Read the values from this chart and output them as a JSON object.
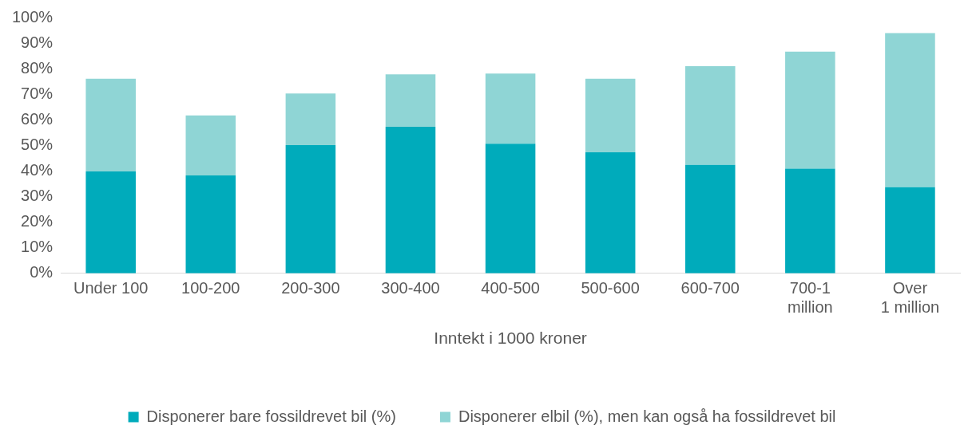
{
  "chart_data": {
    "type": "bar",
    "stacked": true,
    "xlabel": "Inntekt i 1000 kroner",
    "categories": [
      "Under 100",
      "100-200",
      "200-300",
      "300-400",
      "400-500",
      "500-600",
      "600-700",
      "700-1 million",
      "Over 1 million"
    ],
    "series": [
      {
        "name": "Disponerer bare fossildrevet bil (%)",
        "color": "#00abbb",
        "values": [
          39.8,
          38.3,
          50.1,
          57.3,
          50.7,
          47.3,
          42.4,
          40.9,
          33.7
        ]
      },
      {
        "name": "Disponerer elbil (%), men kan også ha fossildrevet bil",
        "color": "#8fd5d5",
        "values": [
          36.3,
          23.4,
          20.2,
          20.5,
          27.4,
          28.8,
          38.6,
          45.8,
          60.2
        ]
      }
    ],
    "ylim": [
      0,
      100
    ],
    "yticks": [
      {
        "value": 0,
        "label": "0%"
      },
      {
        "value": 10,
        "label": "10%"
      },
      {
        "value": 20,
        "label": "20%"
      },
      {
        "value": 30,
        "label": "30%"
      },
      {
        "value": 40,
        "label": "40%"
      },
      {
        "value": 50,
        "label": "50%"
      },
      {
        "value": 60,
        "label": "60%"
      },
      {
        "value": 70,
        "label": "70%"
      },
      {
        "value": 80,
        "label": "80%"
      },
      {
        "value": 90,
        "label": "90%"
      },
      {
        "value": 100,
        "label": "100%"
      }
    ],
    "grid": false,
    "legend": "bottom"
  }
}
